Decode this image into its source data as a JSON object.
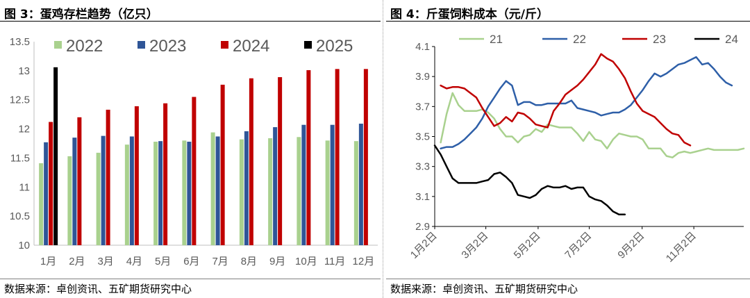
{
  "left": {
    "title": "图 3：蛋鸡存栏趋势（亿只）",
    "source": "数据来源：卓创资讯、五矿期货研究中心"
  },
  "right": {
    "title": "图 4：斤蛋饲料成本（元/斤）",
    "source": "数据来源：卓创资讯、五矿期货研究中心"
  },
  "chart_data": [
    {
      "type": "bar",
      "title": "图 3：蛋鸡存栏趋势（亿只）",
      "categories": [
        "1月",
        "2月",
        "3月",
        "4月",
        "5月",
        "6月",
        "7月",
        "8月",
        "9月",
        "10月",
        "11月",
        "12月"
      ],
      "ylim": [
        10,
        13.5
      ],
      "yticks": [
        "10",
        "10.5",
        "11",
        "11.5",
        "12",
        "12.5",
        "13",
        "13.5"
      ],
      "grid": false,
      "legend": "top",
      "series": [
        {
          "name": "2022",
          "color": "#a9d18e",
          "values": [
            11.41,
            11.53,
            11.59,
            11.73,
            11.78,
            11.8,
            11.94,
            11.82,
            11.84,
            11.86,
            11.8,
            11.79
          ]
        },
        {
          "name": "2023",
          "color": "#2f5597",
          "values": [
            11.77,
            11.85,
            11.88,
            11.87,
            11.79,
            11.78,
            11.87,
            11.96,
            12.03,
            12.07,
            12.07,
            12.09
          ]
        },
        {
          "name": "2024",
          "color": "#c00000",
          "values": [
            12.12,
            12.2,
            12.33,
            12.39,
            12.44,
            12.55,
            12.76,
            12.87,
            12.89,
            13.01,
            13.03,
            13.03
          ]
        },
        {
          "name": "2025",
          "color": "#000000",
          "values": [
            13.06,
            null,
            null,
            null,
            null,
            null,
            null,
            null,
            null,
            null,
            null,
            null
          ]
        }
      ]
    },
    {
      "type": "line",
      "title": "图 4：斤蛋饲料成本（元/斤）",
      "xlim": [
        1,
        53
      ],
      "xticks": [
        {
          "x": 1,
          "label": "1月2日"
        },
        {
          "x": 9.6,
          "label": "3月2日"
        },
        {
          "x": 18.4,
          "label": "5月2日"
        },
        {
          "x": 27,
          "label": "7月2日"
        },
        {
          "x": 35.9,
          "label": "9月2日"
        },
        {
          "x": 44.6,
          "label": "11月2日"
        }
      ],
      "ylim": [
        2.9,
        4.1
      ],
      "yticks": [
        "2.9",
        "3.1",
        "3.3",
        "3.5",
        "3.7",
        "3.9",
        "4.1"
      ],
      "grid": false,
      "legend": "top",
      "series": [
        {
          "name": "21",
          "color": "#a9d18e",
          "x_start": 2,
          "values": [
            3.46,
            3.65,
            3.79,
            3.71,
            3.67,
            3.67,
            3.67,
            3.68,
            3.66,
            3.62,
            3.55,
            3.5,
            3.5,
            3.46,
            3.5,
            3.51,
            3.55,
            3.53,
            3.58,
            3.57,
            3.56,
            3.56,
            3.56,
            3.52,
            3.47,
            3.53,
            3.48,
            3.47,
            3.42,
            3.48,
            3.52,
            3.51,
            3.5,
            3.5,
            3.48,
            3.42,
            3.42,
            3.42,
            3.37,
            3.36,
            3.39,
            3.4,
            3.39,
            3.4,
            3.41,
            3.42,
            3.41,
            3.41,
            3.41,
            3.41,
            3.41,
            3.42
          ]
        },
        {
          "name": "22",
          "color": "#2e5fa8",
          "x_start": 2,
          "values": [
            3.42,
            3.43,
            3.43,
            3.45,
            3.48,
            3.52,
            3.56,
            3.62,
            3.7,
            3.76,
            3.82,
            3.87,
            3.84,
            3.71,
            3.73,
            3.73,
            3.71,
            3.71,
            3.72,
            3.72,
            3.72,
            3.72,
            3.74,
            3.69,
            3.68,
            3.67,
            3.66,
            3.64,
            3.65,
            3.66,
            3.66,
            3.68,
            3.71,
            3.76,
            3.81,
            3.87,
            3.92,
            3.9,
            3.92,
            3.95,
            3.98,
            3.99,
            4.01,
            4.03,
            3.98,
            3.99,
            3.95,
            3.9,
            3.86,
            3.84
          ]
        },
        {
          "name": "23",
          "color": "#c00000",
          "x_start": 2,
          "values": [
            3.84,
            3.82,
            3.83,
            3.83,
            3.82,
            3.79,
            3.76,
            3.69,
            3.63,
            3.57,
            3.59,
            3.63,
            3.6,
            3.66,
            3.65,
            3.62,
            3.58,
            3.57,
            3.56,
            3.67,
            3.72,
            3.78,
            3.81,
            3.84,
            3.88,
            3.93,
            3.98,
            4.05,
            4.02,
            4.0,
            3.95,
            3.89,
            3.8,
            3.72,
            3.67,
            3.65,
            3.63,
            3.59,
            3.55,
            3.52,
            3.51,
            3.46,
            3.44
          ]
        },
        {
          "name": "24",
          "color": "#000000",
          "x_start": 1,
          "values": [
            3.44,
            3.38,
            3.3,
            3.22,
            3.19,
            3.19,
            3.19,
            3.19,
            3.2,
            3.21,
            3.25,
            3.26,
            3.23,
            3.19,
            3.11,
            3.1,
            3.09,
            3.11,
            3.15,
            3.17,
            3.16,
            3.16,
            3.17,
            3.15,
            3.16,
            3.16,
            3.1,
            3.08,
            3.07,
            3.04,
            3.0,
            2.98,
            2.98
          ]
        }
      ]
    }
  ]
}
